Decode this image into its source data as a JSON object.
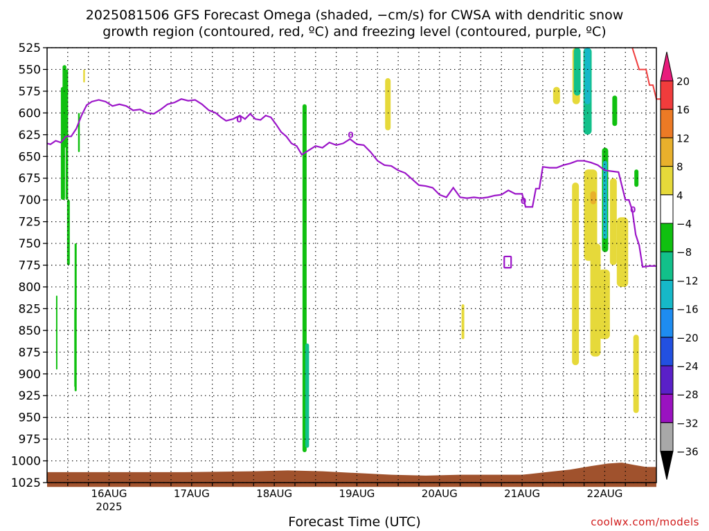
{
  "title_line1": "2025081506 GFS Forecast Omega (shaded, −cm/s) for CWSA with dendritic snow",
  "title_line2": "growth region (contoured, red, ºC) and freezing level (contoured, purple, ºC)",
  "watermark": "coolwx.com/models",
  "chart_data": {
    "type": "heatmap",
    "title": "2025081506 GFS Forecast Omega (shaded, −cm/s) for CWSA with dendritic snow growth region (contoured, red, ºC) and freezing level (contoured, purple, ºC)",
    "xlabel": "Forecast Time (UTC)",
    "ylabel": "",
    "x_unit": "hours since 2025-08-15 06 UTC",
    "xlim": [
      0,
      177
    ],
    "x_ticks": [
      {
        "x": 18,
        "label": "16AUG",
        "sublabel": "2025"
      },
      {
        "x": 42,
        "label": "17AUG",
        "sublabel": ""
      },
      {
        "x": 66,
        "label": "18AUG",
        "sublabel": ""
      },
      {
        "x": 90,
        "label": "19AUG",
        "sublabel": ""
      },
      {
        "x": 114,
        "label": "20AUG",
        "sublabel": ""
      },
      {
        "x": 138,
        "label": "21AUG",
        "sublabel": ""
      },
      {
        "x": 162,
        "label": "22AUG",
        "sublabel": ""
      }
    ],
    "y_unit": "hPa",
    "ylim": [
      1025,
      525
    ],
    "y_ticks": [
      525,
      550,
      575,
      600,
      625,
      650,
      675,
      700,
      725,
      750,
      775,
      800,
      825,
      850,
      875,
      900,
      925,
      950,
      975,
      1000,
      1025
    ],
    "grid": true,
    "colorbar": {
      "labels": [
        "20",
        "16",
        "12",
        "8",
        "4",
        "−4",
        "−8",
        "−12",
        "−16",
        "−20",
        "−24",
        "−28",
        "−32",
        "−36"
      ],
      "colors": [
        "#f03c3c",
        "#ec7a25",
        "#e8b02c",
        "#e6d93a",
        "#ffffff",
        "#10c010",
        "#12c08a",
        "#16b8c8",
        "#1e8cf0",
        "#2250e0",
        "#5a20c8",
        "#9a12c0",
        "#a8a8a8"
      ]
    },
    "freezing_level_label": "0",
    "freezing_level": [
      {
        "x": 0,
        "p": 635
      },
      {
        "x": 1,
        "p": 636
      },
      {
        "x": 2.5,
        "p": 632
      },
      {
        "x": 4,
        "p": 634
      },
      {
        "x": 5.5,
        "p": 627
      },
      {
        "x": 7,
        "p": 627
      },
      {
        "x": 8.5,
        "p": 618
      },
      {
        "x": 10,
        "p": 603
      },
      {
        "x": 11.5,
        "p": 591
      },
      {
        "x": 13,
        "p": 587
      },
      {
        "x": 15,
        "p": 585
      },
      {
        "x": 17,
        "p": 587
      },
      {
        "x": 19,
        "p": 592
      },
      {
        "x": 21,
        "p": 590
      },
      {
        "x": 23,
        "p": 592
      },
      {
        "x": 25,
        "p": 597
      },
      {
        "x": 27,
        "p": 596
      },
      {
        "x": 29,
        "p": 600
      },
      {
        "x": 31,
        "p": 601
      },
      {
        "x": 33,
        "p": 596
      },
      {
        "x": 35,
        "p": 590
      },
      {
        "x": 37,
        "p": 588
      },
      {
        "x": 39,
        "p": 584
      },
      {
        "x": 41,
        "p": 586
      },
      {
        "x": 43,
        "p": 585
      },
      {
        "x": 45,
        "p": 590
      },
      {
        "x": 47,
        "p": 597
      },
      {
        "x": 49,
        "p": 600
      },
      {
        "x": 50.5,
        "p": 605
      },
      {
        "x": 52,
        "p": 609
      },
      {
        "x": 54,
        "p": 607
      },
      {
        "x": 56,
        "p": 603
      },
      {
        "x": 57.5,
        "p": 607
      },
      {
        "x": 59,
        "p": 601
      },
      {
        "x": 60.5,
        "p": 607
      },
      {
        "x": 62,
        "p": 608
      },
      {
        "x": 63.5,
        "p": 603
      },
      {
        "x": 65,
        "p": 605
      },
      {
        "x": 66.5,
        "p": 613
      },
      {
        "x": 68,
        "p": 622
      },
      {
        "x": 69.5,
        "p": 627
      },
      {
        "x": 71,
        "p": 635
      },
      {
        "x": 72.5,
        "p": 638
      },
      {
        "x": 74,
        "p": 648
      },
      {
        "x": 76,
        "p": 643
      },
      {
        "x": 78,
        "p": 638
      },
      {
        "x": 80,
        "p": 640
      },
      {
        "x": 82,
        "p": 634
      },
      {
        "x": 84,
        "p": 637
      },
      {
        "x": 86,
        "p": 635
      },
      {
        "x": 88,
        "p": 630
      },
      {
        "x": 90,
        "p": 636
      },
      {
        "x": 92,
        "p": 637
      },
      {
        "x": 94,
        "p": 645
      },
      {
        "x": 96,
        "p": 655
      },
      {
        "x": 98,
        "p": 660
      },
      {
        "x": 100,
        "p": 661
      },
      {
        "x": 102,
        "p": 666
      },
      {
        "x": 104,
        "p": 669
      },
      {
        "x": 106,
        "p": 676
      },
      {
        "x": 108,
        "p": 683
      },
      {
        "x": 110,
        "p": 684
      },
      {
        "x": 112,
        "p": 686
      },
      {
        "x": 114,
        "p": 694
      },
      {
        "x": 116,
        "p": 697
      },
      {
        "x": 118,
        "p": 686
      },
      {
        "x": 120,
        "p": 697
      },
      {
        "x": 122,
        "p": 698
      },
      {
        "x": 124,
        "p": 697
      },
      {
        "x": 126,
        "p": 698
      },
      {
        "x": 128,
        "p": 697
      },
      {
        "x": 130,
        "p": 695
      },
      {
        "x": 132,
        "p": 694
      },
      {
        "x": 134,
        "p": 689
      },
      {
        "x": 136,
        "p": 693
      },
      {
        "x": 138,
        "p": 693
      },
      {
        "x": 139,
        "p": 708
      },
      {
        "x": 141,
        "p": 708
      },
      {
        "x": 142,
        "p": 687
      },
      {
        "x": 143,
        "p": 687
      },
      {
        "x": 144,
        "p": 662
      },
      {
        "x": 146,
        "p": 663
      },
      {
        "x": 148,
        "p": 663
      },
      {
        "x": 150,
        "p": 660
      },
      {
        "x": 152,
        "p": 658
      },
      {
        "x": 154,
        "p": 655
      },
      {
        "x": 156,
        "p": 655
      },
      {
        "x": 158,
        "p": 657
      },
      {
        "x": 160,
        "p": 660
      },
      {
        "x": 162,
        "p": 666
      },
      {
        "x": 164,
        "p": 667
      },
      {
        "x": 166,
        "p": 668
      },
      {
        "x": 168,
        "p": 700
      },
      {
        "x": 169,
        "p": 700
      },
      {
        "x": 170,
        "p": 712
      },
      {
        "x": 171,
        "p": 740
      },
      {
        "x": 172,
        "p": 752
      },
      {
        "x": 173,
        "p": 777
      },
      {
        "x": 175,
        "p": 776
      },
      {
        "x": 177,
        "p": 776
      }
    ],
    "dgz_contour": [
      {
        "x": 170,
        "p": 525
      },
      {
        "x": 172,
        "p": 550
      },
      {
        "x": 174,
        "p": 550
      },
      {
        "x": 175,
        "p": 568
      },
      {
        "x": 176,
        "p": 568
      },
      {
        "x": 177,
        "p": 584
      },
      {
        "x": 179,
        "p": 584
      }
    ],
    "surface_pressure": [
      {
        "x": 0,
        "p": 1013
      },
      {
        "x": 20,
        "p": 1013
      },
      {
        "x": 40,
        "p": 1013
      },
      {
        "x": 60,
        "p": 1012
      },
      {
        "x": 70,
        "p": 1011
      },
      {
        "x": 80,
        "p": 1012
      },
      {
        "x": 90,
        "p": 1014
      },
      {
        "x": 100,
        "p": 1016
      },
      {
        "x": 110,
        "p": 1017
      },
      {
        "x": 120,
        "p": 1016
      },
      {
        "x": 130,
        "p": 1016
      },
      {
        "x": 138,
        "p": 1016
      },
      {
        "x": 145,
        "p": 1013
      },
      {
        "x": 152,
        "p": 1010
      },
      {
        "x": 158,
        "p": 1006
      },
      {
        "x": 163,
        "p": 1003
      },
      {
        "x": 167,
        "p": 1002
      },
      {
        "x": 171,
        "p": 1005
      },
      {
        "x": 174,
        "p": 1007
      },
      {
        "x": 177,
        "p": 1007
      }
    ],
    "shaded_regions": [
      {
        "value": -6,
        "x": [
          4,
          5.2
        ],
        "p": [
          570,
          700
        ]
      },
      {
        "value": -6,
        "x": [
          4.5,
          5.6
        ],
        "p": [
          545,
          640
        ]
      },
      {
        "value": -6,
        "x": [
          5.4,
          6.1
        ],
        "p": [
          550,
          700
        ]
      },
      {
        "value": -6,
        "x": [
          5.8,
          6.6
        ],
        "p": [
          700,
          775
        ]
      },
      {
        "value": -6,
        "x": [
          8.0,
          8.6
        ],
        "p": [
          750,
          920
        ]
      },
      {
        "value": -6,
        "x": [
          7.9,
          8.3
        ],
        "p": [
          825,
          915
        ]
      },
      {
        "value": -6,
        "x": [
          2.6,
          3.0
        ],
        "p": [
          810,
          895
        ]
      },
      {
        "value": -6,
        "x": [
          9.0,
          9.5
        ],
        "p": [
          600,
          645
        ]
      },
      {
        "value": -6,
        "x": [
          74.2,
          75.4
        ],
        "p": [
          590,
          990
        ]
      },
      {
        "value": -10,
        "x": [
          75.0,
          76.1
        ],
        "p": [
          865,
          985
        ]
      },
      {
        "value": 6,
        "x": [
          98.2,
          99.8
        ],
        "p": [
          560,
          620
        ]
      },
      {
        "value": 6,
        "x": [
          152.6,
          154.8
        ],
        "p": [
          525,
          590
        ]
      },
      {
        "value": -10,
        "x": [
          153.0,
          155.0
        ],
        "p": [
          525,
          580
        ]
      },
      {
        "value": -8,
        "x": [
          155.8,
          158.2
        ],
        "p": [
          525,
          625
        ]
      },
      {
        "value": -12,
        "x": [
          156.2,
          157.8
        ],
        "p": [
          525,
          590
        ]
      },
      {
        "value": 6,
        "x": [
          147.0,
          149.0
        ],
        "p": [
          570,
          590
        ]
      },
      {
        "value": -7,
        "x": [
          161.2,
          163.0
        ],
        "p": [
          640,
          760
        ]
      },
      {
        "value": -12,
        "x": [
          161.5,
          162.7
        ],
        "p": [
          655,
          745
        ]
      },
      {
        "value": -7,
        "x": [
          164.2,
          165.6
        ],
        "p": [
          580,
          615
        ]
      },
      {
        "value": -7,
        "x": [
          170.6,
          171.8
        ],
        "p": [
          665,
          685
        ]
      },
      {
        "value": 6,
        "x": [
          152.5,
          154.5
        ],
        "p": [
          680,
          890
        ]
      },
      {
        "value": 6,
        "x": [
          156.0,
          159.8
        ],
        "p": [
          665,
          770
        ]
      },
      {
        "value": 6,
        "x": [
          157.8,
          160.8
        ],
        "p": [
          750,
          880
        ]
      },
      {
        "value": 6,
        "x": [
          160.2,
          163.5
        ],
        "p": [
          780,
          860
        ]
      },
      {
        "value": 6,
        "x": [
          163.5,
          165.5
        ],
        "p": [
          675,
          775
        ]
      },
      {
        "value": 6,
        "x": [
          165.5,
          168.8
        ],
        "p": [
          720,
          800
        ]
      },
      {
        "value": 6,
        "x": [
          170.3,
          171.9
        ],
        "p": [
          855,
          945
        ]
      },
      {
        "value": 10,
        "x": [
          157.8,
          159.5
        ],
        "p": [
          690,
          705
        ]
      },
      {
        "value": 6,
        "x": [
          120.4,
          121.2
        ],
        "p": [
          820,
          860
        ]
      },
      {
        "value": 6,
        "x": [
          10.5,
          11.0
        ],
        "p": [
          550,
          565
        ]
      }
    ]
  }
}
